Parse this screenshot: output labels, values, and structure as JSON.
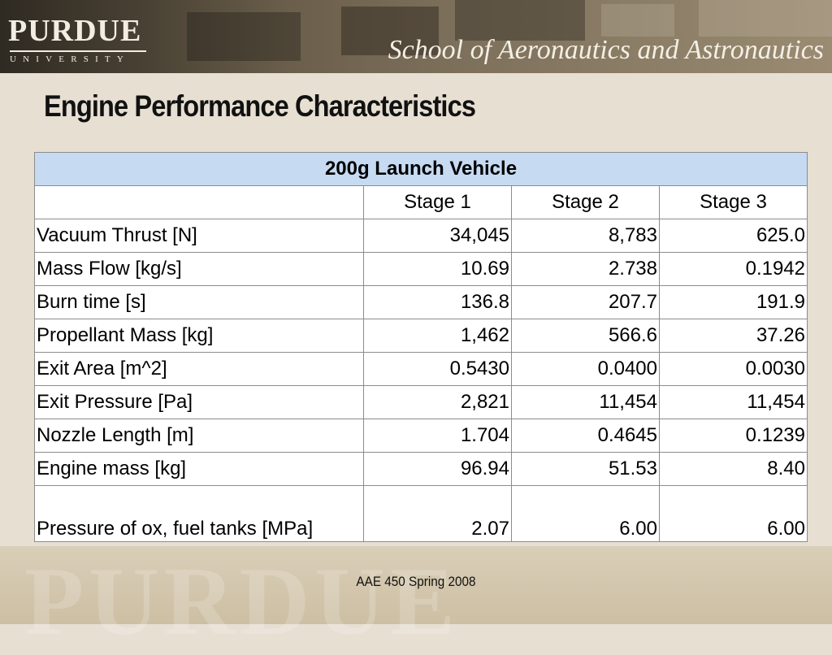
{
  "header": {
    "logo_name": "PURDUE",
    "logo_sub": "UNIVERSITY",
    "school": "School of Aeronautics and Astronautics"
  },
  "slide": {
    "title": "Engine Performance Characteristics"
  },
  "table": {
    "caption": "200g Launch Vehicle",
    "columns": [
      "",
      "Stage 1",
      "Stage 2",
      "Stage 3"
    ],
    "rows": [
      {
        "label": "Vacuum Thrust  [N]",
        "values": [
          "34,045",
          "8,783",
          "625.0"
        ]
      },
      {
        "label": "Mass Flow [kg/s]",
        "values": [
          "10.69",
          "2.738",
          "0.1942"
        ]
      },
      {
        "label": "Burn time [s]",
        "values": [
          "136.8",
          "207.7",
          "191.9"
        ]
      },
      {
        "label": "Propellant Mass [kg]",
        "values": [
          "1,462",
          "566.6",
          "37.26"
        ]
      },
      {
        "label": "Exit Area  [m^2]",
        "values": [
          "0.5430",
          "0.0400",
          "0.0030"
        ]
      },
      {
        "label": "Exit Pressure  [Pa]",
        "values": [
          "2,821",
          "11,454",
          "11,454"
        ]
      },
      {
        "label": "Nozzle Length  [m]",
        "values": [
          "1.704",
          "0.4645",
          "0.1239"
        ]
      },
      {
        "label": "Engine mass  [kg]",
        "values": [
          "96.94",
          "51.53",
          "8.40"
        ]
      },
      {
        "label": "Pressure of ox, fuel tanks [MPa]",
        "values": [
          "2.07",
          "6.00",
          "6.00"
        ]
      }
    ]
  },
  "footer": {
    "text": "AAE 450 Spring 2008",
    "watermark": "PURDUE"
  },
  "colors": {
    "header_bg": "#4a4234",
    "slide_bg": "#e6dfd2",
    "table_title_bg": "#c6daf2"
  }
}
